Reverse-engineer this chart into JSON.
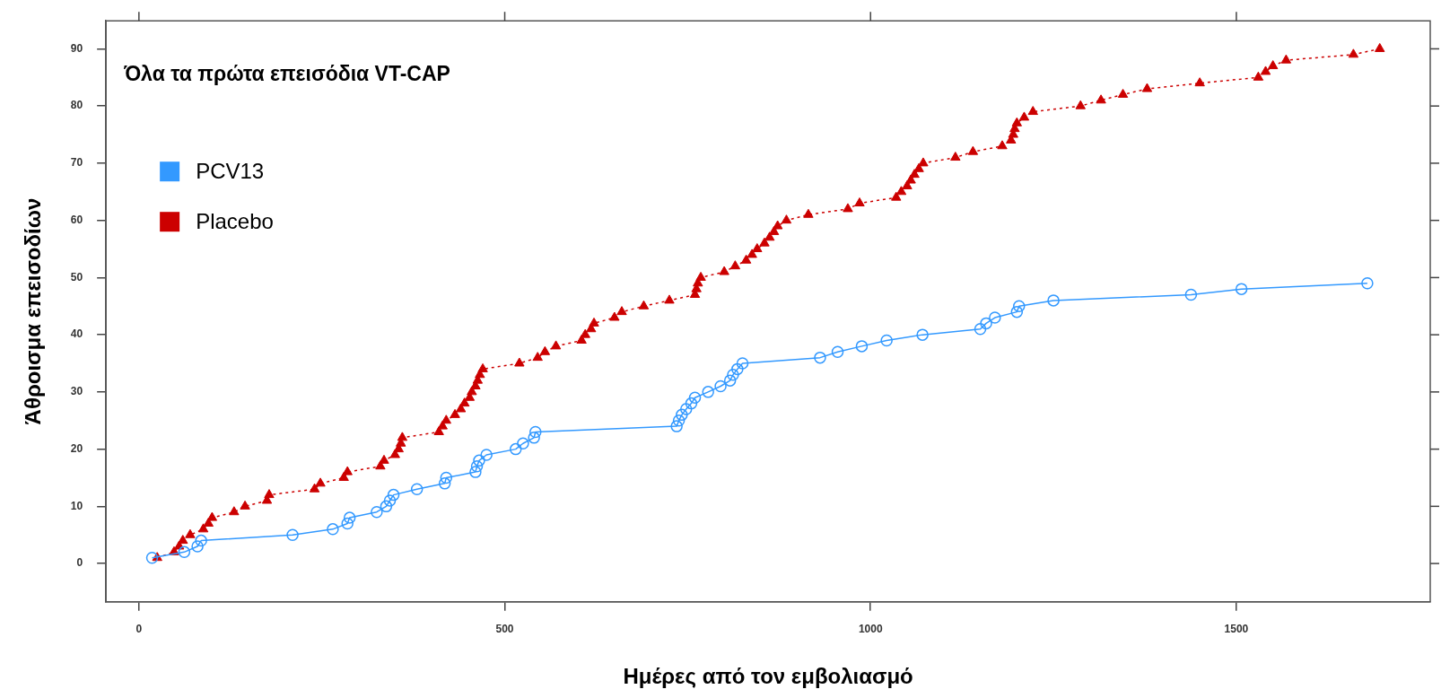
{
  "chart_data": {
    "type": "line",
    "title": "Όλα τα πρώτα επεισόδια VT-CAP",
    "xlabel": "Ημέρες από τον εμβολιασμό",
    "ylabel": "Άθροισμα επεισοδίων",
    "xlim": [
      -45,
      1765
    ],
    "xticks": [
      0,
      500,
      1000,
      1500
    ],
    "ylim": [
      -6.7,
      94.9
    ],
    "yticks": [
      0,
      10,
      20,
      30,
      40,
      50,
      60,
      70,
      80,
      90
    ],
    "grid": false,
    "legend": "top left",
    "series": [
      {
        "name": "PCV13",
        "color": "#3399ff",
        "marker": "circle",
        "line_style": "solid",
        "x": [
          18,
          62,
          80,
          85,
          210,
          265,
          285,
          288,
          325,
          338,
          343,
          348,
          380,
          418,
          420,
          460,
          462,
          465,
          475,
          515,
          525,
          540,
          542,
          735,
          738,
          742,
          748,
          755,
          760,
          778,
          795,
          808,
          812,
          818,
          825,
          931,
          955,
          988,
          1022,
          1071,
          1150,
          1158,
          1170,
          1200,
          1203,
          1250,
          1438,
          1507,
          1679
        ],
        "values": [
          1,
          2,
          3,
          4,
          5,
          6,
          7,
          8,
          9,
          10,
          11,
          12,
          13,
          14,
          15,
          16,
          17,
          18,
          19,
          20,
          21,
          22,
          23,
          24,
          25,
          26,
          27,
          28,
          29,
          30,
          31,
          32,
          33,
          34,
          35,
          36,
          37,
          38,
          39,
          40,
          41,
          42,
          43,
          44,
          45,
          46,
          47,
          48,
          49
        ]
      },
      {
        "name": "Placebo",
        "color": "#cc0000",
        "marker": "triangle",
        "line_style": "dotted",
        "x": [
          25,
          48,
          55,
          60,
          70,
          88,
          95,
          100,
          130,
          145,
          175,
          178,
          240,
          248,
          280,
          285,
          330,
          335,
          350,
          355,
          358,
          360,
          410,
          415,
          420,
          432,
          440,
          445,
          452,
          455,
          460,
          463,
          466,
          470,
          520,
          545,
          555,
          570,
          605,
          610,
          618,
          622,
          650,
          660,
          690,
          725,
          760,
          762,
          764,
          768,
          800,
          815,
          830,
          838,
          845,
          855,
          862,
          868,
          873,
          885,
          915,
          969,
          985,
          1035,
          1042,
          1050,
          1055,
          1060,
          1066,
          1072,
          1116,
          1140,
          1180,
          1192,
          1195,
          1197,
          1200,
          1210,
          1222,
          1287,
          1315,
          1345,
          1378,
          1450,
          1530,
          1540,
          1550,
          1568,
          1660,
          1696
        ],
        "values": [
          1,
          2,
          3,
          4,
          5,
          6,
          7,
          8,
          9,
          10,
          11,
          12,
          13,
          14,
          15,
          16,
          17,
          18,
          19,
          20,
          21,
          22,
          23,
          24,
          25,
          26,
          27,
          28,
          29,
          30,
          31,
          32,
          33,
          34,
          35,
          36,
          37,
          38,
          39,
          40,
          41,
          42,
          43,
          44,
          45,
          46,
          47,
          48,
          49,
          50,
          51,
          52,
          53,
          54,
          55,
          56,
          57,
          58,
          59,
          60,
          61,
          62,
          63,
          64,
          65,
          66,
          67,
          68,
          69,
          70,
          71,
          72,
          73,
          74,
          75,
          76,
          77,
          78,
          79,
          80,
          81,
          82,
          83,
          84,
          85,
          86,
          87,
          88,
          89,
          90
        ]
      }
    ]
  }
}
